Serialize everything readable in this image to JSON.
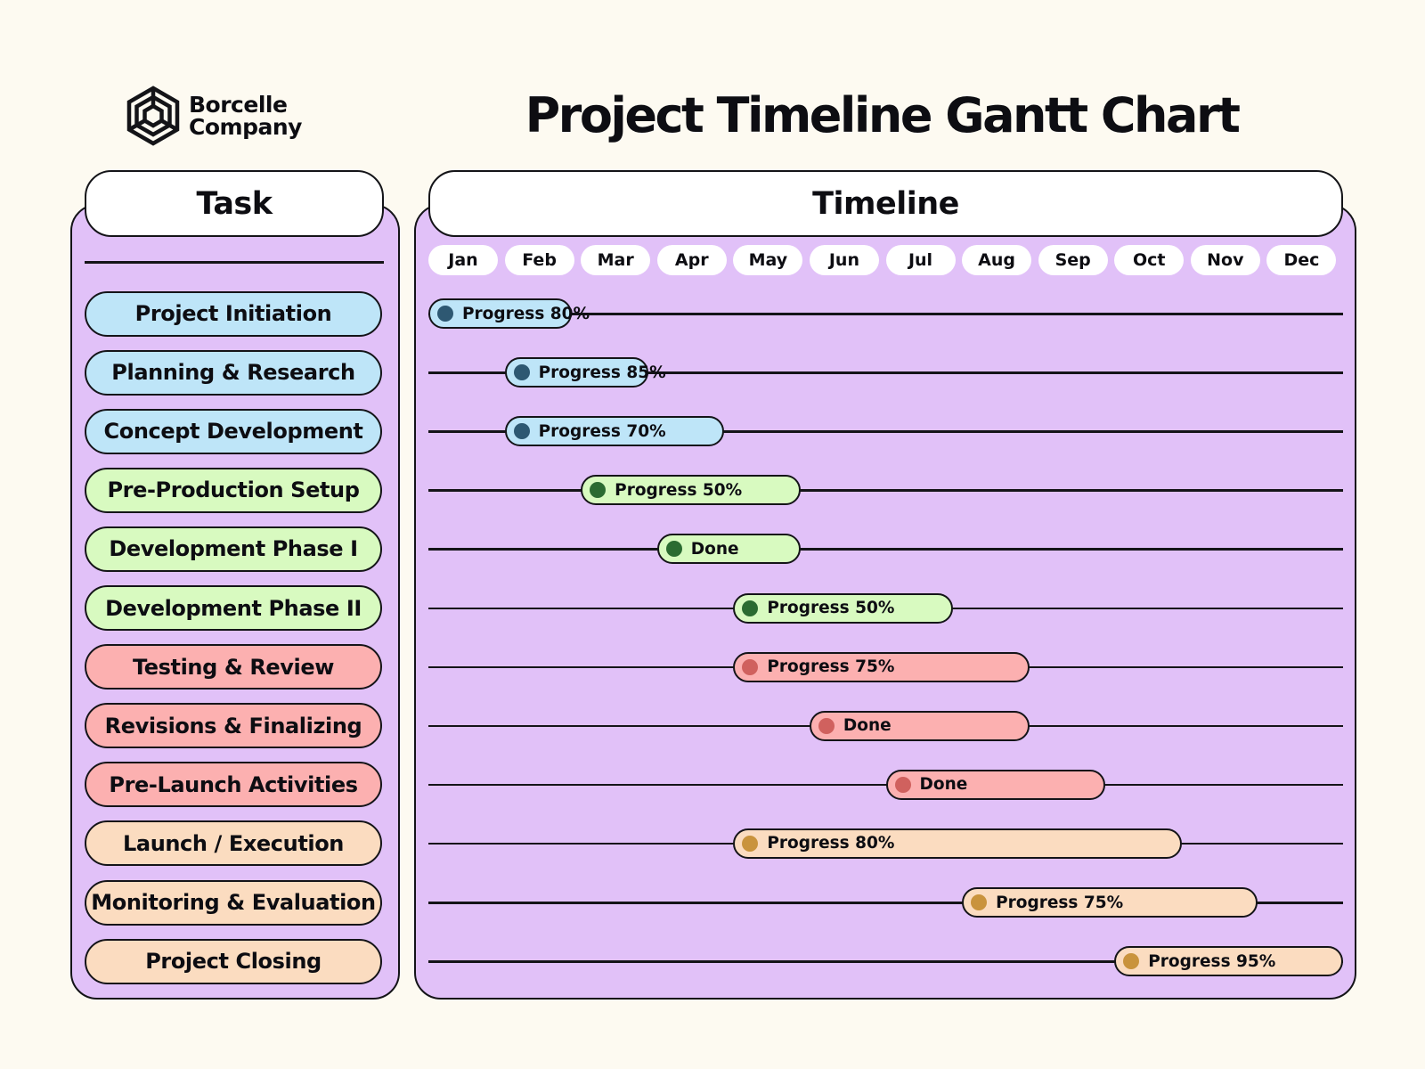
{
  "brand": {
    "line1": "Borcelle",
    "line2": "Company"
  },
  "title": "Project Timeline Gantt Chart",
  "headers": {
    "task": "Task",
    "timeline": "Timeline"
  },
  "colors": {
    "page_bg": "#fdfaf1",
    "panel_bg": "#e1c1f8",
    "phases": {
      "blue": {
        "fill": "#bee5f8",
        "dot": "#2e5872"
      },
      "green": {
        "fill": "#d8fac0",
        "dot": "#2b6b31"
      },
      "red": {
        "fill": "#fcb0b0",
        "dot": "#d0615e"
      },
      "peach": {
        "fill": "#fbdcc0",
        "dot": "#c9933d"
      }
    }
  },
  "chart_data": {
    "type": "gantt",
    "title": "Project Timeline Gantt Chart",
    "months": [
      "Jan",
      "Feb",
      "Mar",
      "Apr",
      "May",
      "Jun",
      "Jul",
      "Aug",
      "Sep",
      "Oct",
      "Nov",
      "Dec"
    ],
    "tasks": [
      {
        "name": "Project Initiation",
        "start": "Jan",
        "end": "Feb",
        "status": "Progress 80%",
        "color": "blue"
      },
      {
        "name": "Planning & Research",
        "start": "Feb",
        "end": "Mar",
        "status": "Progress 85%",
        "color": "blue"
      },
      {
        "name": "Concept Development",
        "start": "Feb",
        "end": "Apr",
        "status": "Progress 70%",
        "color": "blue"
      },
      {
        "name": "Pre-Production Setup",
        "start": "Mar",
        "end": "May",
        "status": "Progress 50%",
        "color": "green"
      },
      {
        "name": "Development Phase I",
        "start": "Apr",
        "end": "May",
        "status": "Done",
        "color": "green"
      },
      {
        "name": "Development Phase II",
        "start": "May",
        "end": "Jul",
        "status": "Progress 50%",
        "color": "green"
      },
      {
        "name": "Testing & Review",
        "start": "May",
        "end": "Aug",
        "status": "Progress 75%",
        "color": "red"
      },
      {
        "name": "Revisions & Finalizing",
        "start": "Jun",
        "end": "Aug",
        "status": "Done",
        "color": "red"
      },
      {
        "name": "Pre-Launch Activities",
        "start": "Jul",
        "end": "Sep",
        "status": "Done",
        "color": "red"
      },
      {
        "name": "Launch / Execution",
        "start": "May",
        "end": "Oct",
        "status": "Progress 80%",
        "color": "peach"
      },
      {
        "name": "Monitoring & Evaluation",
        "start": "Aug",
        "end": "Nov",
        "status": "Progress 75%",
        "color": "peach"
      },
      {
        "name": "Project Closing",
        "start": "Oct",
        "end": "Dec",
        "status": "Progress 95%",
        "color": "peach"
      }
    ]
  }
}
